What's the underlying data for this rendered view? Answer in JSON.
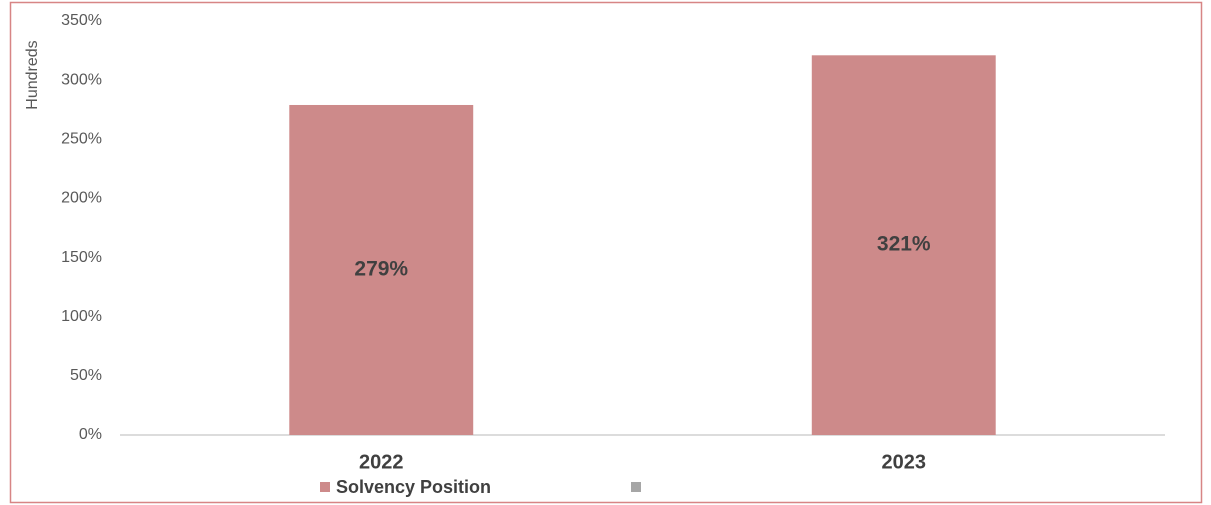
{
  "chart_data": {
    "type": "bar",
    "y_axis_label": "Hundreds",
    "categories": [
      "2022",
      "2023"
    ],
    "series": [
      {
        "name": "Solvency Position",
        "color": "#cd8a8a",
        "values": [
          279,
          321
        ],
        "value_labels": [
          "279%",
          "321%"
        ]
      }
    ],
    "ylim": [
      0,
      350
    ],
    "yticks": [
      {
        "value": 0,
        "label": "0%"
      },
      {
        "value": 50,
        "label": "50%"
      },
      {
        "value": 100,
        "label": "100%"
      },
      {
        "value": 150,
        "label": "150%"
      },
      {
        "value": 200,
        "label": "200%"
      },
      {
        "value": 250,
        "label": "250%"
      },
      {
        "value": 300,
        "label": "300%"
      },
      {
        "value": 350,
        "label": "350%"
      }
    ],
    "grid": false
  }
}
